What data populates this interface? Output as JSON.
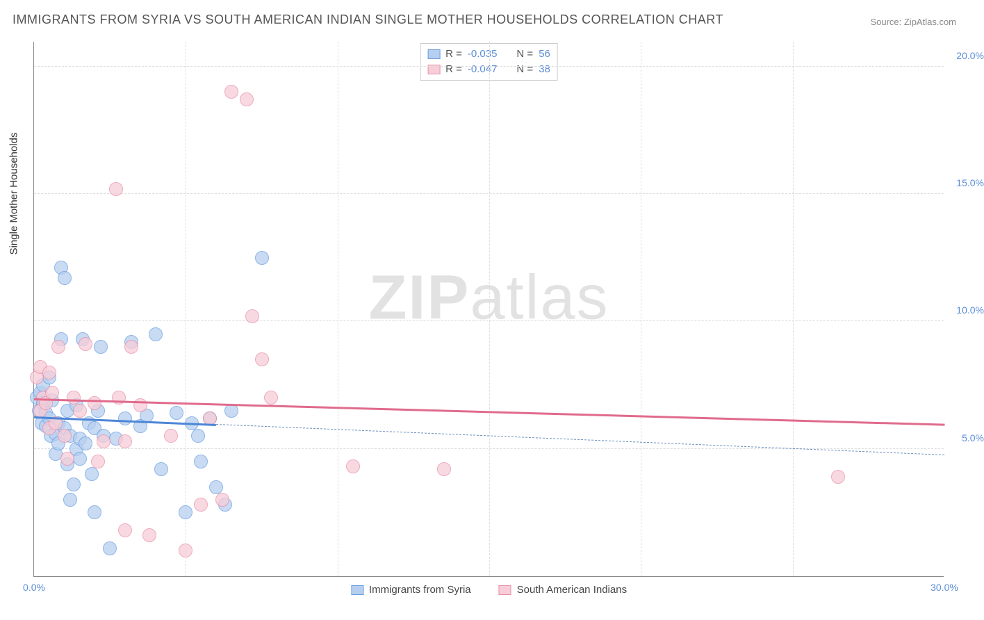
{
  "title": "IMMIGRANTS FROM SYRIA VS SOUTH AMERICAN INDIAN SINGLE MOTHER HOUSEHOLDS CORRELATION CHART",
  "source_label": "Source: ZipAtlas.com",
  "ylabel": "Single Mother Households",
  "watermark_a": "ZIP",
  "watermark_b": "atlas",
  "chart": {
    "type": "scatter",
    "xlim": [
      0,
      30
    ],
    "ylim": [
      0,
      21
    ],
    "xticks": [
      0,
      30
    ],
    "yticks": [
      5,
      10,
      15,
      20
    ],
    "xtick_labels": [
      "0.0%",
      "30.0%"
    ],
    "ytick_labels": [
      "5.0%",
      "10.0%",
      "15.0%",
      "20.0%"
    ],
    "grid_h": [
      5,
      10,
      15,
      20
    ],
    "grid_v": [
      5,
      10,
      15,
      20,
      25
    ],
    "background_color": "#ffffff",
    "grid_color": "#dddddd",
    "axis_color": "#888888",
    "tick_label_color": "#5b8dd6",
    "marker_radius": 10,
    "marker_stroke_width": 1.5,
    "series": [
      {
        "name": "Immigrants from Syria",
        "fill": "#b6cff0",
        "stroke": "#6a9de0",
        "line_color": "#4e86d6",
        "dashed_color": "#6a8fbf",
        "r_label": "R =",
        "r_value": "-0.035",
        "n_label": "N =",
        "n_value": "56",
        "trend": {
          "y_at_x0": 6.3,
          "y_at_xmax": 4.8
        },
        "points": [
          [
            0.1,
            7.0
          ],
          [
            0.15,
            6.5
          ],
          [
            0.2,
            7.2
          ],
          [
            0.25,
            6.0
          ],
          [
            0.3,
            6.8
          ],
          [
            0.3,
            7.5
          ],
          [
            0.4,
            5.9
          ],
          [
            0.4,
            6.4
          ],
          [
            0.5,
            6.2
          ],
          [
            0.5,
            7.8
          ],
          [
            0.55,
            5.5
          ],
          [
            0.6,
            6.9
          ],
          [
            0.7,
            5.6
          ],
          [
            0.7,
            4.8
          ],
          [
            0.8,
            5.2
          ],
          [
            0.8,
            6.0
          ],
          [
            0.9,
            9.3
          ],
          [
            0.9,
            12.1
          ],
          [
            1.0,
            11.7
          ],
          [
            1.0,
            5.8
          ],
          [
            1.1,
            4.4
          ],
          [
            1.1,
            6.5
          ],
          [
            1.2,
            3.0
          ],
          [
            1.2,
            5.5
          ],
          [
            1.3,
            3.6
          ],
          [
            1.4,
            6.7
          ],
          [
            1.4,
            5.0
          ],
          [
            1.5,
            5.4
          ],
          [
            1.5,
            4.6
          ],
          [
            1.6,
            9.3
          ],
          [
            1.7,
            5.2
          ],
          [
            1.8,
            6.0
          ],
          [
            1.9,
            4.0
          ],
          [
            2.0,
            2.5
          ],
          [
            2.0,
            5.8
          ],
          [
            2.1,
            6.5
          ],
          [
            2.2,
            9.0
          ],
          [
            2.3,
            5.5
          ],
          [
            2.5,
            1.1
          ],
          [
            2.7,
            5.4
          ],
          [
            3.0,
            6.2
          ],
          [
            3.2,
            9.2
          ],
          [
            3.5,
            5.9
          ],
          [
            3.7,
            6.3
          ],
          [
            4.0,
            9.5
          ],
          [
            4.2,
            4.2
          ],
          [
            4.7,
            6.4
          ],
          [
            5.0,
            2.5
          ],
          [
            5.2,
            6.0
          ],
          [
            5.4,
            5.5
          ],
          [
            5.5,
            4.5
          ],
          [
            5.8,
            6.2
          ],
          [
            6.3,
            2.8
          ],
          [
            6.5,
            6.5
          ],
          [
            7.5,
            12.5
          ],
          [
            6.0,
            3.5
          ]
        ]
      },
      {
        "name": "South American Indians",
        "fill": "#f7cdd8",
        "stroke": "#e98fa8",
        "line_color": "#e06b8c",
        "r_label": "R =",
        "r_value": "-0.047",
        "n_label": "N =",
        "n_value": "38",
        "trend": {
          "y_at_x0": 7.0,
          "y_at_xmax": 6.0
        },
        "points": [
          [
            0.1,
            7.8
          ],
          [
            0.2,
            8.2
          ],
          [
            0.2,
            6.5
          ],
          [
            0.3,
            7.0
          ],
          [
            0.4,
            6.8
          ],
          [
            0.5,
            8.0
          ],
          [
            0.5,
            5.8
          ],
          [
            0.6,
            7.2
          ],
          [
            0.7,
            6.0
          ],
          [
            0.8,
            9.0
          ],
          [
            1.0,
            5.5
          ],
          [
            1.1,
            4.6
          ],
          [
            1.3,
            7.0
          ],
          [
            1.5,
            6.5
          ],
          [
            1.7,
            9.1
          ],
          [
            2.0,
            6.8
          ],
          [
            2.1,
            4.5
          ],
          [
            2.3,
            5.3
          ],
          [
            2.7,
            15.2
          ],
          [
            2.8,
            7.0
          ],
          [
            3.0,
            5.3
          ],
          [
            3.0,
            1.8
          ],
          [
            3.2,
            9.0
          ],
          [
            3.5,
            6.7
          ],
          [
            3.8,
            1.6
          ],
          [
            4.5,
            5.5
          ],
          [
            5.0,
            1.0
          ],
          [
            5.5,
            2.8
          ],
          [
            5.8,
            6.2
          ],
          [
            6.2,
            3.0
          ],
          [
            6.5,
            19.0
          ],
          [
            7.0,
            18.7
          ],
          [
            7.2,
            10.2
          ],
          [
            7.5,
            8.5
          ],
          [
            7.8,
            7.0
          ],
          [
            10.5,
            4.3
          ],
          [
            13.5,
            4.2
          ],
          [
            26.5,
            3.9
          ]
        ]
      }
    ]
  },
  "legend": {
    "series1_label": "Immigrants from Syria",
    "series2_label": "South American Indians"
  }
}
